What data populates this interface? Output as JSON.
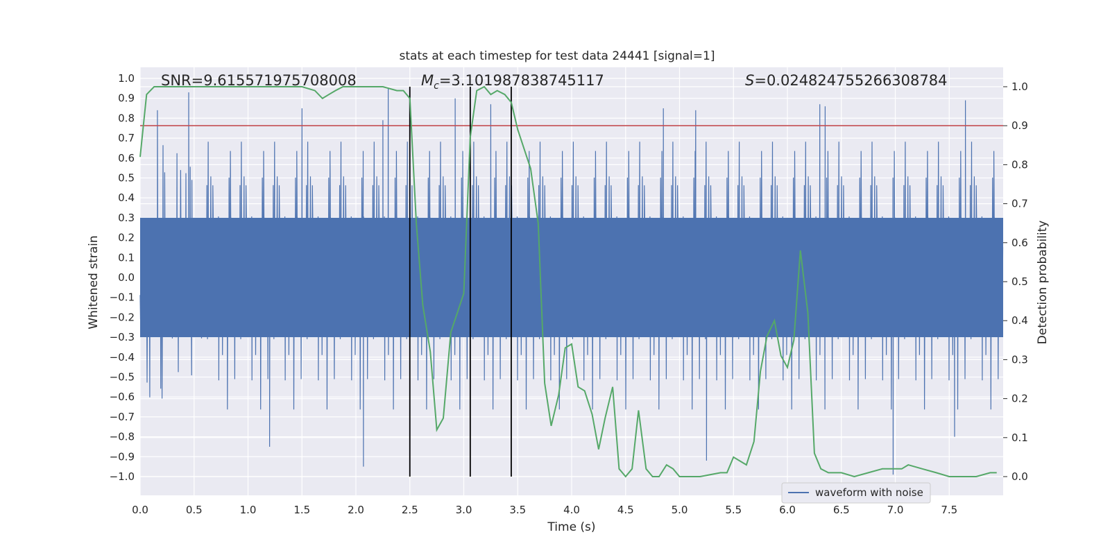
{
  "chart_data": {
    "type": "line",
    "title": "stats at each timestep for test data 24441 [signal=1]",
    "xlabel": "Time (s)",
    "ylabel_left": "Whitened strain",
    "ylabel_right": "Detection probability",
    "xlim": [
      0.0,
      8.0
    ],
    "ylim_left": [
      -1.1,
      1.05
    ],
    "ylim_right": [
      -0.05,
      1.03
    ],
    "x_ticks": [
      "0.0",
      "0.5",
      "1.0",
      "1.5",
      "2.0",
      "2.5",
      "3.0",
      "3.5",
      "4.0",
      "4.5",
      "5.0",
      "5.5",
      "6.0",
      "6.5",
      "7.0",
      "7.5"
    ],
    "y_ticks_left": [
      "1.0",
      "0.9",
      "0.8",
      "0.7",
      "0.6",
      "0.5",
      "0.4",
      "0.3",
      "0.2",
      "0.1",
      "0.0",
      "−0.1",
      "−0.2",
      "−0.3",
      "−0.4",
      "−0.5",
      "−0.6",
      "−0.7",
      "−0.8",
      "−0.9",
      "−1.0"
    ],
    "y_ticks_right": [
      "1.0",
      "0.9",
      "0.8",
      "0.7",
      "0.6",
      "0.5",
      "0.4",
      "0.3",
      "0.2",
      "0.1",
      "0.0"
    ],
    "annotations": {
      "snr": "SNR=9.615571975708008",
      "mc_symbol": "M",
      "mc_sub": "c",
      "mc_value": "=3.101987838745117",
      "s_symbol": "S",
      "s_value": "=0.024824755266308784"
    },
    "legend": {
      "label": "waveform with noise",
      "placement": "lower-right"
    },
    "grid": true,
    "colors": {
      "waveform": "#4c72b0",
      "probability": "#55a868",
      "threshold": "#c44e52",
      "markers": "#000000",
      "background": "#eaeaf2"
    },
    "threshold": 0.9,
    "vertical_markers": [
      2.5,
      3.06,
      3.44
    ],
    "waveform": {
      "name": "waveform with noise",
      "sample_rate_hint": "dense noise, envelope approx ±0.3 to ±0.5",
      "peaks_positive": [
        [
          0.16,
          0.84
        ],
        [
          0.45,
          0.93
        ],
        [
          1.5,
          0.85
        ],
        [
          2.25,
          0.79
        ],
        [
          2.3,
          0.95
        ],
        [
          2.92,
          0.9
        ],
        [
          3.25,
          0.87
        ],
        [
          4.85,
          0.85
        ],
        [
          5.15,
          0.84
        ],
        [
          6.3,
          0.87
        ],
        [
          6.35,
          0.86
        ],
        [
          7.65,
          0.89
        ]
      ],
      "peaks_negative": [
        [
          1.2,
          -0.85
        ],
        [
          2.07,
          -0.95
        ],
        [
          2.5,
          -0.86
        ],
        [
          5.25,
          -0.92
        ],
        [
          6.98,
          -0.99
        ],
        [
          7.55,
          -0.8
        ]
      ]
    },
    "series": [
      {
        "name": "Detection probability",
        "x": [
          0.0,
          0.06,
          0.13,
          0.25,
          0.5,
          0.75,
          1.0,
          1.25,
          1.5,
          1.62,
          1.69,
          1.75,
          1.81,
          1.88,
          1.94,
          2.0,
          2.25,
          2.38,
          2.44,
          2.5,
          2.56,
          2.62,
          2.69,
          2.75,
          2.81,
          2.88,
          3.0,
          3.06,
          3.12,
          3.19,
          3.25,
          3.31,
          3.38,
          3.44,
          3.5,
          3.56,
          3.62,
          3.69,
          3.75,
          3.81,
          3.88,
          3.94,
          4.0,
          4.06,
          4.12,
          4.19,
          4.25,
          4.31,
          4.38,
          4.44,
          4.5,
          4.56,
          4.62,
          4.69,
          4.75,
          4.81,
          4.88,
          4.94,
          5.0,
          5.06,
          5.19,
          5.38,
          5.44,
          5.5,
          5.56,
          5.62,
          5.69,
          5.75,
          5.81,
          5.88,
          5.94,
          6.0,
          6.06,
          6.12,
          6.19,
          6.25,
          6.31,
          6.38,
          6.5,
          6.62,
          6.75,
          6.88,
          7.0,
          7.06,
          7.12,
          7.25,
          7.38,
          7.5,
          7.62,
          7.75,
          7.88,
          7.94
        ],
        "y": [
          0.82,
          0.98,
          1.0,
          1.0,
          1.0,
          1.0,
          1.0,
          1.0,
          1.0,
          0.99,
          0.97,
          0.98,
          0.99,
          1.0,
          1.0,
          1.0,
          1.0,
          0.99,
          0.99,
          0.97,
          0.65,
          0.44,
          0.32,
          0.12,
          0.15,
          0.37,
          0.47,
          0.87,
          0.99,
          1.0,
          0.98,
          0.99,
          0.98,
          0.96,
          0.89,
          0.84,
          0.79,
          0.65,
          0.24,
          0.13,
          0.21,
          0.33,
          0.34,
          0.23,
          0.22,
          0.16,
          0.07,
          0.15,
          0.23,
          0.02,
          0.0,
          0.02,
          0.17,
          0.02,
          0.0,
          0.0,
          0.03,
          0.02,
          0.0,
          0.0,
          0.0,
          0.01,
          0.01,
          0.05,
          0.04,
          0.03,
          0.09,
          0.27,
          0.36,
          0.4,
          0.31,
          0.28,
          0.35,
          0.58,
          0.42,
          0.06,
          0.02,
          0.01,
          0.01,
          0.0,
          0.01,
          0.02,
          0.02,
          0.02,
          0.03,
          0.02,
          0.01,
          0.0,
          0.0,
          0.0,
          0.01,
          0.01
        ]
      }
    ]
  }
}
